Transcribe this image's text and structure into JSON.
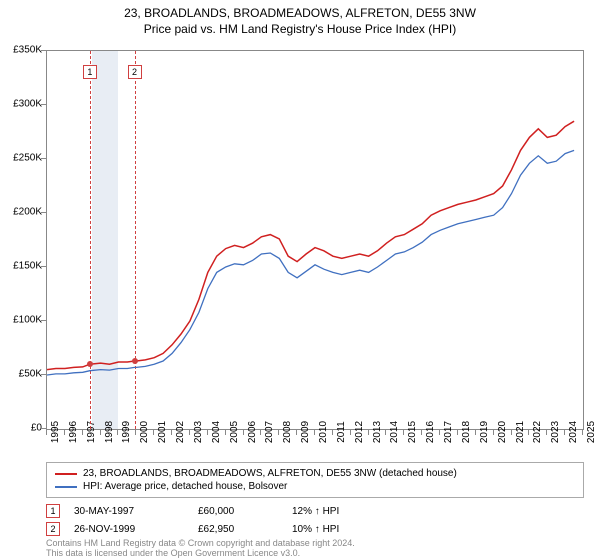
{
  "title_line1": "23, BROADLANDS, BROADMEADOWS, ALFRETON, DE55 3NW",
  "title_line2": "Price paid vs. HM Land Registry's House Price Index (HPI)",
  "colors": {
    "series_red": "#d02020",
    "series_blue": "#4070c0",
    "axis": "#888888",
    "shade": "#e8edf4",
    "marker_border": "#d04040",
    "footer": "#888888"
  },
  "chart": {
    "type": "line",
    "x_start": 1995,
    "x_end": 2025,
    "y_min": 0,
    "y_max": 350000,
    "y_ticks": [
      0,
      50000,
      100000,
      150000,
      200000,
      250000,
      300000,
      350000
    ],
    "y_tick_labels": [
      "£0",
      "£50K",
      "£100K",
      "£150K",
      "£200K",
      "£250K",
      "£300K",
      "£350K"
    ],
    "x_ticks": [
      1995,
      1996,
      1997,
      1998,
      1999,
      2000,
      2001,
      2002,
      2003,
      2004,
      2005,
      2006,
      2007,
      2008,
      2009,
      2010,
      2011,
      2012,
      2013,
      2014,
      2015,
      2016,
      2017,
      2018,
      2019,
      2020,
      2021,
      2022,
      2023,
      2024,
      2025
    ],
    "shade_start": 1997.5,
    "shade_end": 1999.0,
    "sale_markers": [
      {
        "label": "1",
        "x": 1997.4,
        "y": 60000
      },
      {
        "label": "2",
        "x": 1999.9,
        "y": 62950
      }
    ],
    "series": [
      {
        "name": "red",
        "color": "#d02020",
        "width": 1.5,
        "data": [
          [
            1995,
            55000
          ],
          [
            1995.5,
            56000
          ],
          [
            1996,
            56000
          ],
          [
            1996.5,
            57000
          ],
          [
            1997,
            57500
          ],
          [
            1997.4,
            60000
          ],
          [
            1998,
            61000
          ],
          [
            1998.5,
            60000
          ],
          [
            1999,
            62000
          ],
          [
            1999.5,
            62000
          ],
          [
            1999.9,
            62950
          ],
          [
            2000,
            63000
          ],
          [
            2000.5,
            64000
          ],
          [
            2001,
            66000
          ],
          [
            2001.5,
            70000
          ],
          [
            2002,
            78000
          ],
          [
            2002.5,
            88000
          ],
          [
            2003,
            100000
          ],
          [
            2003.5,
            120000
          ],
          [
            2004,
            145000
          ],
          [
            2004.5,
            160000
          ],
          [
            2005,
            167000
          ],
          [
            2005.5,
            170000
          ],
          [
            2006,
            168000
          ],
          [
            2006.5,
            172000
          ],
          [
            2007,
            178000
          ],
          [
            2007.5,
            180000
          ],
          [
            2008,
            176000
          ],
          [
            2008.5,
            160000
          ],
          [
            2009,
            155000
          ],
          [
            2009.5,
            162000
          ],
          [
            2010,
            168000
          ],
          [
            2010.5,
            165000
          ],
          [
            2011,
            160000
          ],
          [
            2011.5,
            158000
          ],
          [
            2012,
            160000
          ],
          [
            2012.5,
            162000
          ],
          [
            2013,
            160000
          ],
          [
            2013.5,
            165000
          ],
          [
            2014,
            172000
          ],
          [
            2014.5,
            178000
          ],
          [
            2015,
            180000
          ],
          [
            2015.5,
            185000
          ],
          [
            2016,
            190000
          ],
          [
            2016.5,
            198000
          ],
          [
            2017,
            202000
          ],
          [
            2017.5,
            205000
          ],
          [
            2018,
            208000
          ],
          [
            2018.5,
            210000
          ],
          [
            2019,
            212000
          ],
          [
            2019.5,
            215000
          ],
          [
            2020,
            218000
          ],
          [
            2020.5,
            225000
          ],
          [
            2021,
            240000
          ],
          [
            2021.5,
            258000
          ],
          [
            2022,
            270000
          ],
          [
            2022.5,
            278000
          ],
          [
            2023,
            270000
          ],
          [
            2023.5,
            272000
          ],
          [
            2024,
            280000
          ],
          [
            2024.5,
            285000
          ]
        ]
      },
      {
        "name": "blue",
        "color": "#4070c0",
        "width": 1.3,
        "data": [
          [
            1995,
            50000
          ],
          [
            1995.5,
            51000
          ],
          [
            1996,
            51000
          ],
          [
            1996.5,
            52000
          ],
          [
            1997,
            52500
          ],
          [
            1997.4,
            54000
          ],
          [
            1998,
            55000
          ],
          [
            1998.5,
            54500
          ],
          [
            1999,
            56000
          ],
          [
            1999.5,
            56000
          ],
          [
            1999.9,
            57000
          ],
          [
            2000,
            57000
          ],
          [
            2000.5,
            58000
          ],
          [
            2001,
            60000
          ],
          [
            2001.5,
            63000
          ],
          [
            2002,
            70000
          ],
          [
            2002.5,
            80000
          ],
          [
            2003,
            92000
          ],
          [
            2003.5,
            108000
          ],
          [
            2004,
            130000
          ],
          [
            2004.5,
            145000
          ],
          [
            2005,
            150000
          ],
          [
            2005.5,
            153000
          ],
          [
            2006,
            152000
          ],
          [
            2006.5,
            156000
          ],
          [
            2007,
            162000
          ],
          [
            2007.5,
            163000
          ],
          [
            2008,
            158000
          ],
          [
            2008.5,
            145000
          ],
          [
            2009,
            140000
          ],
          [
            2009.5,
            146000
          ],
          [
            2010,
            152000
          ],
          [
            2010.5,
            148000
          ],
          [
            2011,
            145000
          ],
          [
            2011.5,
            143000
          ],
          [
            2012,
            145000
          ],
          [
            2012.5,
            147000
          ],
          [
            2013,
            145000
          ],
          [
            2013.5,
            150000
          ],
          [
            2014,
            156000
          ],
          [
            2014.5,
            162000
          ],
          [
            2015,
            164000
          ],
          [
            2015.5,
            168000
          ],
          [
            2016,
            173000
          ],
          [
            2016.5,
            180000
          ],
          [
            2017,
            184000
          ],
          [
            2017.5,
            187000
          ],
          [
            2018,
            190000
          ],
          [
            2018.5,
            192000
          ],
          [
            2019,
            194000
          ],
          [
            2019.5,
            196000
          ],
          [
            2020,
            198000
          ],
          [
            2020.5,
            205000
          ],
          [
            2021,
            218000
          ],
          [
            2021.5,
            235000
          ],
          [
            2022,
            246000
          ],
          [
            2022.5,
            253000
          ],
          [
            2023,
            246000
          ],
          [
            2023.5,
            248000
          ],
          [
            2024,
            255000
          ],
          [
            2024.5,
            258000
          ]
        ]
      }
    ]
  },
  "legend": {
    "items": [
      {
        "color": "#d02020",
        "label": "23, BROADLANDS, BROADMEADOWS, ALFRETON, DE55 3NW (detached house)"
      },
      {
        "color": "#4070c0",
        "label": "HPI: Average price, detached house, Bolsover"
      }
    ]
  },
  "sales": [
    {
      "marker": "1",
      "date": "30-MAY-1997",
      "price": "£60,000",
      "pct": "12% ↑ HPI"
    },
    {
      "marker": "2",
      "date": "26-NOV-1999",
      "price": "£62,950",
      "pct": "10% ↑ HPI"
    }
  ],
  "footer_line1": "Contains HM Land Registry data © Crown copyright and database right 2024.",
  "footer_line2": "This data is licensed under the Open Government Licence v3.0."
}
